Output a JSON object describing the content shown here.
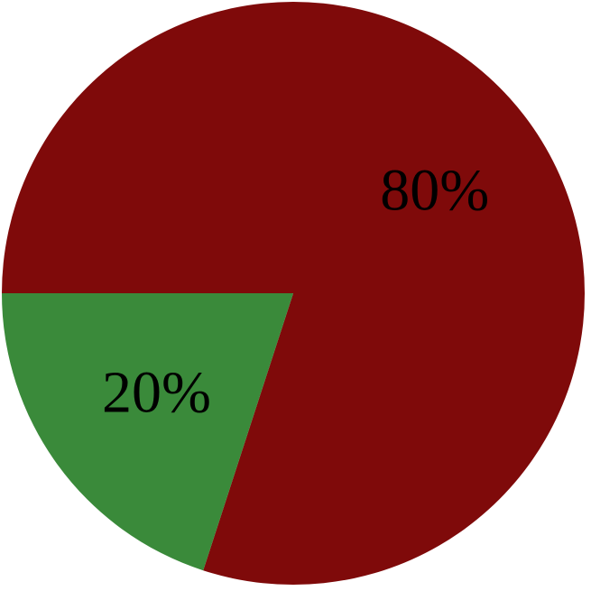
{
  "chart_data": {
    "type": "pie",
    "categories": [
      "",
      ""
    ],
    "values": [
      80,
      20
    ],
    "labels": [
      "80%",
      "20%"
    ],
    "colors": [
      "#7f0a0a",
      "#3a8a3a"
    ],
    "legend": "none",
    "title": ""
  }
}
